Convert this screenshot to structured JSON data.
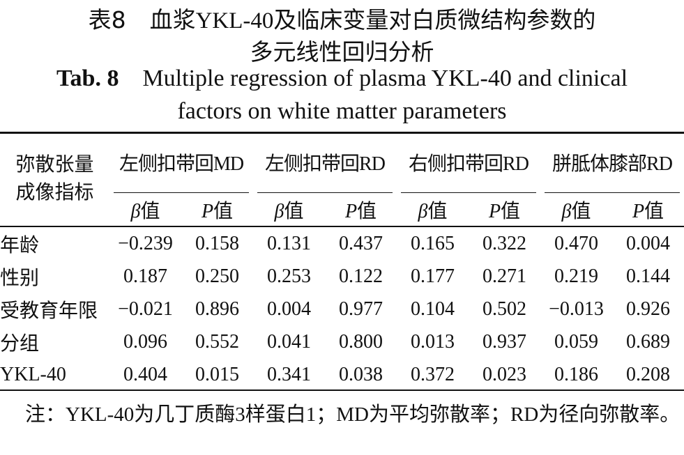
{
  "title": {
    "zh_label": "表8",
    "zh_lines": [
      "血浆YKL-40及临床变量对白质微结构参数的",
      "多元线性回归分析"
    ],
    "en_label": "Tab. 8",
    "en_lines": [
      "Multiple regression of plasma YKL-40 and clinical",
      "factors on white matter parameters"
    ]
  },
  "table": {
    "stub_header": [
      "弥散张量",
      "成像指标"
    ],
    "groups": [
      "左侧扣带回MD",
      "左侧扣带回RD",
      "右侧扣带回RD",
      "胼胝体膝部RD"
    ],
    "subheaders": [
      {
        "symbol": "β",
        "text": "值"
      },
      {
        "symbol": "P",
        "text": "值"
      },
      {
        "symbol": "β",
        "text": "值"
      },
      {
        "symbol": "P",
        "text": "值"
      },
      {
        "symbol": "β",
        "text": "值"
      },
      {
        "symbol": "P",
        "text": "值"
      },
      {
        "symbol": "β",
        "text": "值"
      },
      {
        "symbol": "P",
        "text": "值"
      }
    ],
    "rows": [
      {
        "label": "年龄",
        "values": [
          "−0.239",
          "0.158",
          "0.131",
          "0.437",
          "0.165",
          "0.322",
          "0.470",
          "0.004"
        ]
      },
      {
        "label": "性别",
        "values": [
          "0.187",
          "0.250",
          "0.253",
          "0.122",
          "0.177",
          "0.271",
          "0.219",
          "0.144"
        ]
      },
      {
        "label": "受教育年限",
        "values": [
          "−0.021",
          "0.896",
          "0.004",
          "0.977",
          "0.104",
          "0.502",
          "−0.013",
          "0.926"
        ]
      },
      {
        "label": "分组",
        "values": [
          "0.096",
          "0.552",
          "0.041",
          "0.800",
          "0.013",
          "0.937",
          "0.059",
          "0.689"
        ]
      },
      {
        "label": "YKL-40",
        "values": [
          "0.404",
          "0.015",
          "0.341",
          "0.038",
          "0.372",
          "0.023",
          "0.186",
          "0.208"
        ]
      }
    ]
  },
  "note": "注：YKL-40为几丁质酶3样蛋白1；MD为平均弥散率；RD为径向弥散率。"
}
